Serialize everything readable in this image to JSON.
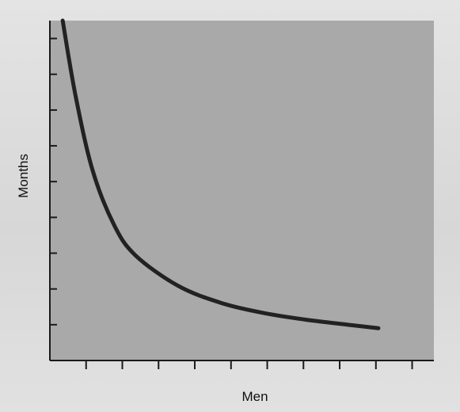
{
  "chart_data": {
    "type": "line",
    "title": "",
    "xlabel": "Men",
    "ylabel": "Months",
    "x_tick_count": 10,
    "y_tick_count": 9,
    "grid": false,
    "series": [
      {
        "values": [
          {
            "x": 0.3,
            "y": 10.0
          },
          {
            "x": 0.6,
            "y": 7.8
          },
          {
            "x": 1.0,
            "y": 5.6
          },
          {
            "x": 1.5,
            "y": 4.0
          },
          {
            "x": 2.0,
            "y": 3.1
          },
          {
            "x": 3.0,
            "y": 2.2
          },
          {
            "x": 4.0,
            "y": 1.7
          },
          {
            "x": 5.0,
            "y": 1.4
          },
          {
            "x": 6.0,
            "y": 1.2
          },
          {
            "x": 7.0,
            "y": 1.05
          },
          {
            "x": 7.7,
            "y": 0.95
          }
        ]
      }
    ],
    "xlim": [
      0,
      9
    ],
    "ylim": [
      0,
      10
    ],
    "colors": {
      "plot_background": "#a9a9a9",
      "curve": "#222222",
      "axis": "#1a1a1a"
    }
  }
}
